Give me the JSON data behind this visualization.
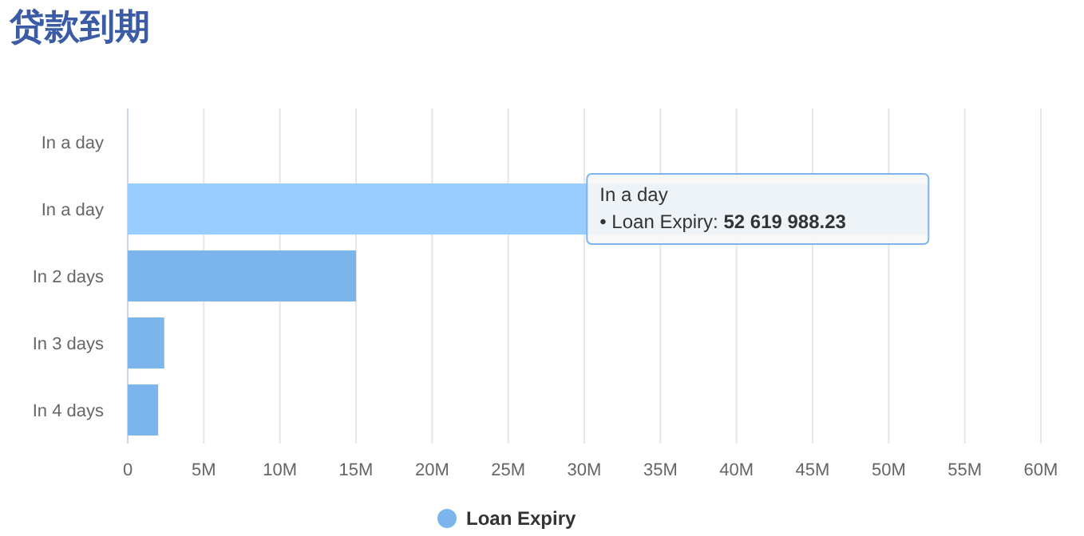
{
  "chart_data": {
    "type": "bar",
    "orientation": "horizontal",
    "title": "贷款到期",
    "categories": [
      "In a day",
      "In a day",
      "In 2 days",
      "In 3 days",
      "In 4 days"
    ],
    "series": [
      {
        "name": "Loan Expiry",
        "color": "#7cb5ec",
        "colors": [
          "#7cb5ec",
          "#99ccff",
          "#7cb5ec",
          "#7cb5ec",
          "#7cb5ec"
        ],
        "values": [
          0,
          52619988.23,
          15000000,
          2400000,
          2000000
        ]
      }
    ],
    "xlim": [
      0,
      60000000
    ],
    "xticks": [
      0,
      {
        "value": 5000000,
        "label": "5M"
      },
      {
        "value": 10000000,
        "label": "10M"
      },
      {
        "value": 15000000,
        "label": "15M"
      },
      {
        "value": 20000000,
        "label": "20M"
      },
      {
        "value": 25000000,
        "label": "25M"
      },
      {
        "value": 30000000,
        "label": "30M"
      },
      {
        "value": 35000000,
        "label": "35M"
      },
      {
        "value": 40000000,
        "label": "40M"
      },
      {
        "value": 45000000,
        "label": "45M"
      },
      {
        "value": 50000000,
        "label": "50M"
      },
      {
        "value": 55000000,
        "label": "55M"
      },
      {
        "value": 60000000,
        "label": "60M"
      }
    ],
    "grid": "x",
    "legend": "bottom",
    "annotations": [
      "In a day\n• Loan Expiry: 52 619 988.23"
    ]
  }
}
